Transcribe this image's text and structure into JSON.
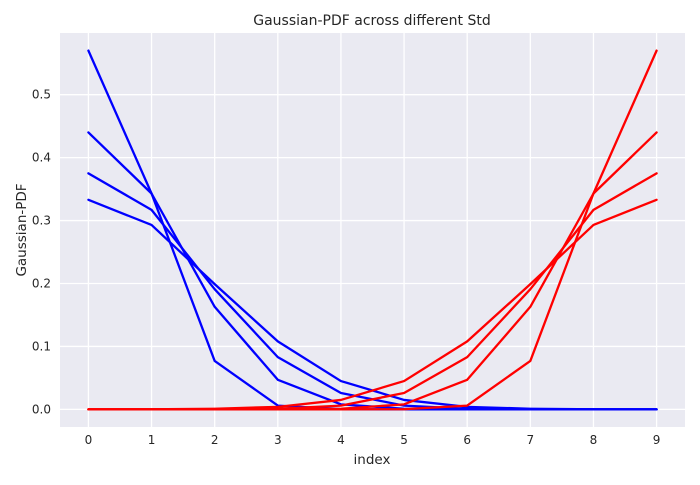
{
  "chart_data": {
    "type": "line",
    "title": "Gaussian-PDF across different Std",
    "xlabel": "index",
    "ylabel": "Gaussian-PDF",
    "x": [
      0,
      1,
      2,
      3,
      4,
      5,
      6,
      7,
      8,
      9
    ],
    "x_ticks": [
      "0",
      "1",
      "2",
      "3",
      "4",
      "5",
      "6",
      "7",
      "8",
      "9"
    ],
    "y_ticks": [
      "0.0",
      "0.1",
      "0.2",
      "0.3",
      "0.4",
      "0.5"
    ],
    "y_tick_values": [
      0.0,
      0.1,
      0.2,
      0.3,
      0.4,
      0.5
    ],
    "xlim": [
      -0.45,
      9.45
    ],
    "ylim": [
      -0.028,
      0.598
    ],
    "grid": true,
    "series": [
      {
        "color": "#0000ff",
        "values": [
          0.57,
          0.343,
          0.077,
          0.006,
          0.0003,
          0.0,
          0.0,
          0.0,
          0.0,
          0.0
        ]
      },
      {
        "color": "#0000ff",
        "values": [
          0.44,
          0.343,
          0.163,
          0.047,
          0.008,
          0.001,
          0.0001,
          0.0,
          0.0,
          0.0
        ]
      },
      {
        "color": "#0000ff",
        "values": [
          0.375,
          0.317,
          0.191,
          0.083,
          0.026,
          0.006,
          0.001,
          0.0001,
          0.0,
          0.0
        ]
      },
      {
        "color": "#0000ff",
        "values": [
          0.333,
          0.293,
          0.199,
          0.108,
          0.045,
          0.015,
          0.004,
          0.001,
          0.0001,
          0.0
        ]
      },
      {
        "color": "#ff0000",
        "values": [
          0.0,
          0.0,
          0.0,
          0.0,
          0.0,
          0.0003,
          0.006,
          0.077,
          0.343,
          0.57
        ]
      },
      {
        "color": "#ff0000",
        "values": [
          0.0,
          0.0,
          0.0,
          0.0001,
          0.001,
          0.008,
          0.047,
          0.163,
          0.343,
          0.44
        ]
      },
      {
        "color": "#ff0000",
        "values": [
          0.0,
          0.0,
          0.0001,
          0.001,
          0.006,
          0.026,
          0.083,
          0.191,
          0.317,
          0.375
        ]
      },
      {
        "color": "#ff0000",
        "values": [
          0.0,
          0.0001,
          0.001,
          0.004,
          0.015,
          0.045,
          0.108,
          0.199,
          0.293,
          0.333
        ]
      }
    ]
  }
}
